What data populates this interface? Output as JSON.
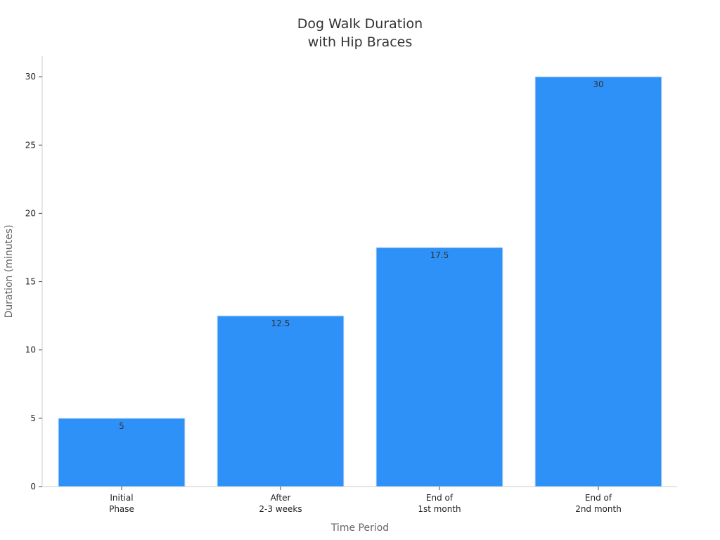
{
  "chart_data": {
    "type": "bar",
    "title": [
      "Dog Walk Duration",
      "with Hip Braces"
    ],
    "xlabel": "Time Period",
    "ylabel": "Duration (minutes)",
    "categories": [
      [
        "Initial",
        "Phase"
      ],
      [
        "After",
        "2-3 weeks"
      ],
      [
        "End of",
        "1st month"
      ],
      [
        "End of",
        "2nd month"
      ]
    ],
    "values": [
      5,
      12.5,
      17.5,
      30
    ],
    "data_labels": [
      "5",
      "12.5",
      "17.5",
      "30"
    ],
    "yticks": [
      0,
      5,
      10,
      15,
      20,
      25,
      30
    ],
    "ylim": [
      0,
      31.5
    ],
    "grid": false,
    "colors": {
      "bar": "#2e91f8",
      "bar_edge": "#d8e6f5"
    }
  }
}
